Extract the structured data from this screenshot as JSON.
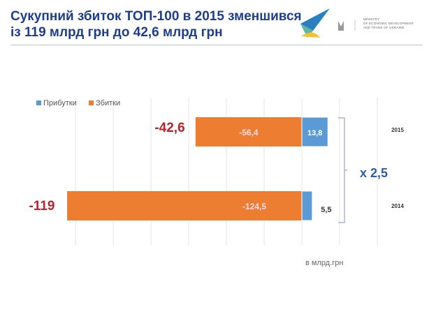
{
  "header": {
    "title_line1": "Сукупний збиток ТОП-100 в 2015 зменшився",
    "title_line2": "із 119 млрд грн до 42,6 млрд грн",
    "ministry": [
      "MINISTRY",
      "OF ECONOMIC DEVELOPMENT",
      "AND TRADE OF UKRAINE"
    ]
  },
  "colors": {
    "profit": "#5b9bd5",
    "loss": "#ed7d31",
    "title": "#1e3d8c",
    "net": "#c0202a",
    "multiplier": "#2e5ea8"
  },
  "chart_data": {
    "type": "bar",
    "orientation": "horizontal",
    "stacked": true,
    "categories": [
      "2015",
      "2014"
    ],
    "series": [
      {
        "name": "Прибутки",
        "values": [
          13.8,
          5.5
        ]
      },
      {
        "name": "Збитки",
        "values": [
          -56.4,
          -124.5
        ]
      }
    ],
    "net_labels": [
      "-42,6",
      "-119"
    ],
    "data_labels": {
      "Прибутки": [
        "13,8",
        "5,5"
      ],
      "Збитки": [
        "-56,4",
        "-124,5"
      ]
    },
    "annotation": "x 2,5",
    "unit_label": "в млрд.грн",
    "xlim": [
      -126,
      40
    ],
    "grid": true,
    "grid_step": 20,
    "legend": "top-left"
  }
}
